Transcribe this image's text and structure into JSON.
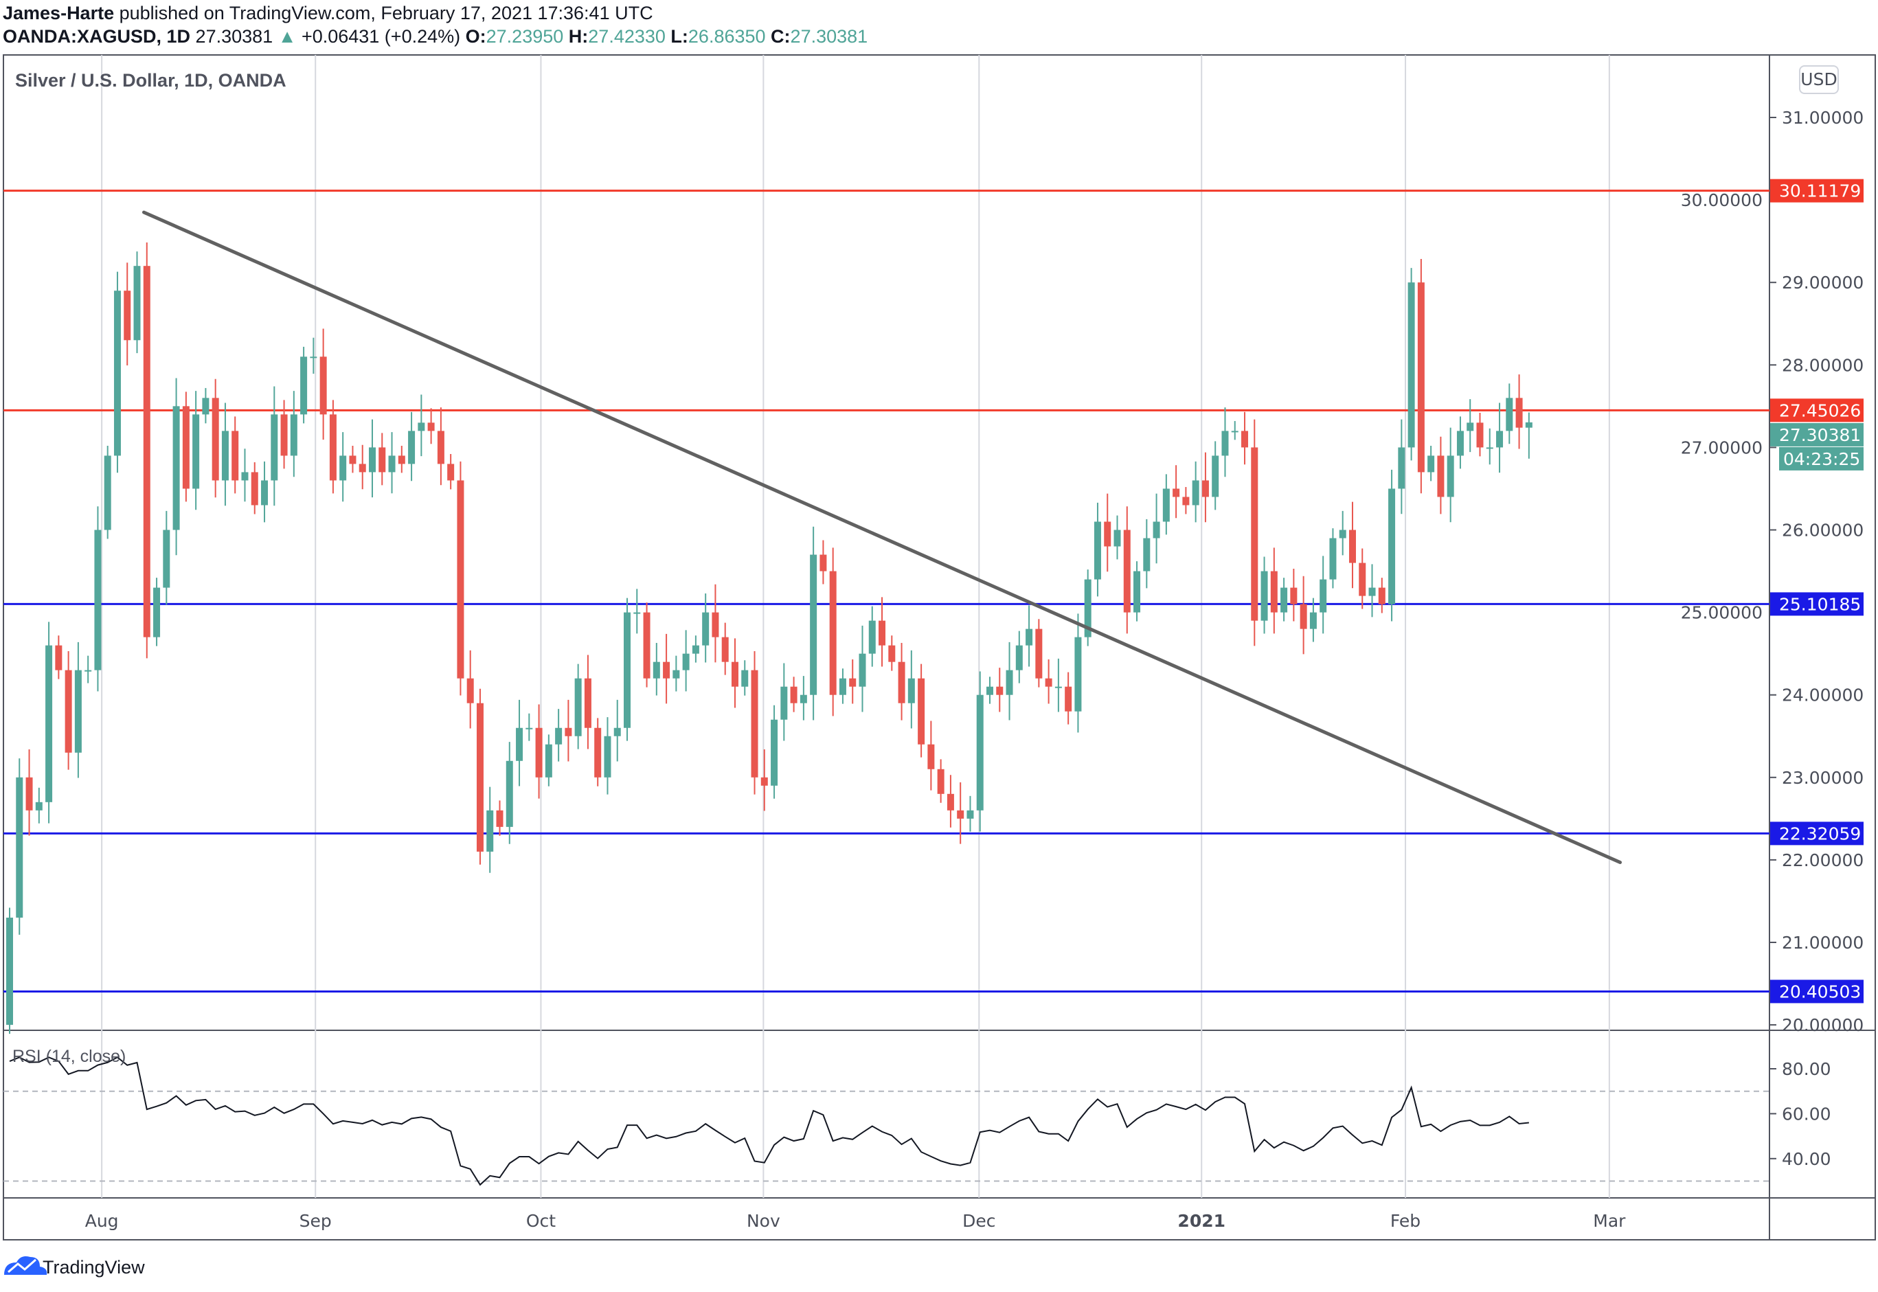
{
  "header": {
    "author": "James-Harte",
    "published": "published on TradingView.com, February 17, 2021 17:36:41 UTC",
    "symbol": "OANDA:XAGUSD, 1D",
    "last": "27.30381",
    "change": "+0.06431 (+0.24%)",
    "o_label": "O:",
    "o": "27.23950",
    "h_label": "H:",
    "h": "27.42330",
    "l_label": "L:",
    "l": "26.86350",
    "c_label": "C:",
    "c": "27.30381"
  },
  "chart_title": "Silver / U.S. Dollar, 1D, OANDA",
  "currency_button": "USD",
  "rsi_title": "RSI (14, close)",
  "countdown": "04:23:25",
  "footer_brand": "TradingView",
  "colors": {
    "up": "#53a69a",
    "down": "#e8574f",
    "resistance": "#f23a2a",
    "support": "#1a1ae6",
    "trendline": "#616161"
  },
  "chart_data": {
    "type": "candlestick",
    "ylim": [
      19.9,
      31.8
    ],
    "y_ticks": [
      "31.00000",
      "30.00000",
      "29.00000",
      "28.00000",
      "27.00000",
      "26.00000",
      "25.00000",
      "24.00000",
      "23.00000",
      "22.00000",
      "21.00000",
      "20.00000"
    ],
    "x_ticks": [
      {
        "label": "Aug",
        "bar": 9.4
      },
      {
        "label": "Sep",
        "bar": 31.2
      },
      {
        "label": "Oct",
        "bar": 54.2
      },
      {
        "label": "Nov",
        "bar": 76.9
      },
      {
        "label": "Dec",
        "bar": 98.9
      },
      {
        "label": "2021",
        "bar": 121.6
      },
      {
        "label": "Feb",
        "bar": 142.4
      },
      {
        "label": "Mar",
        "bar": 163.2
      }
    ],
    "first_open": 20.0,
    "close": [
      21.3,
      23.0,
      22.6,
      22.7,
      24.6,
      24.3,
      23.3,
      24.3,
      24.3,
      26.0,
      26.9,
      28.9,
      28.3,
      29.2,
      24.7,
      25.3,
      26.0,
      27.5,
      26.5,
      27.4,
      27.6,
      26.6,
      27.2,
      26.6,
      26.7,
      26.3,
      26.6,
      27.4,
      26.9,
      27.4,
      28.1,
      28.1,
      27.4,
      26.6,
      26.9,
      26.8,
      26.7,
      27.0,
      26.7,
      26.9,
      26.8,
      27.2,
      27.3,
      27.2,
      26.8,
      26.6,
      24.2,
      23.9,
      22.1,
      22.6,
      22.4,
      23.2,
      23.6,
      23.6,
      23.0,
      23.4,
      23.6,
      23.5,
      24.2,
      23.6,
      23.0,
      23.5,
      23.6,
      25.0,
      25.0,
      24.2,
      24.4,
      24.2,
      24.3,
      24.5,
      24.6,
      25.0,
      24.7,
      24.4,
      24.1,
      24.3,
      23.0,
      22.9,
      23.7,
      24.1,
      23.9,
      24.0,
      25.7,
      25.5,
      24.0,
      24.2,
      24.1,
      24.5,
      24.9,
      24.6,
      24.4,
      23.9,
      24.2,
      23.4,
      23.1,
      22.8,
      22.6,
      22.5,
      22.6,
      24.0,
      24.1,
      24.0,
      24.3,
      24.6,
      24.8,
      24.2,
      24.1,
      24.1,
      23.8,
      24.7,
      25.4,
      26.1,
      25.8,
      26.0,
      25.0,
      25.5,
      25.9,
      26.1,
      26.5,
      26.4,
      26.3,
      26.6,
      26.4,
      26.9,
      27.2,
      27.2,
      27.0,
      24.9,
      25.5,
      25.0,
      25.3,
      25.1,
      24.8,
      25.0,
      25.4,
      25.9,
      26.0,
      25.6,
      25.2,
      25.3,
      25.1,
      26.5,
      27.0,
      29.0,
      26.7,
      26.9,
      26.4,
      26.9,
      27.2,
      27.3,
      27.0,
      27.0,
      27.2,
      27.6,
      27.2395,
      27.30381
    ],
    "last_bar": {
      "open": 27.2395,
      "high": 27.4233,
      "low": 26.8635,
      "close": 27.30381
    },
    "levels": [
      {
        "label": "30.11179",
        "value": 30.11179,
        "kind": "resistance"
      },
      {
        "label": "27.45026",
        "value": 27.45026,
        "kind": "resistance"
      },
      {
        "label": "25.10185",
        "value": 25.10185,
        "kind": "support"
      },
      {
        "label": "22.32059",
        "value": 22.32059,
        "kind": "support"
      },
      {
        "label": "20.40503",
        "value": 20.40503,
        "kind": "support"
      }
    ],
    "last_price_label": "27.30381",
    "trendline": {
      "start_bar": 13.7,
      "start_price": 29.85,
      "end_bar": 164.3,
      "end_price": 21.97
    },
    "rsi": {
      "period": 14,
      "y_ticks": [
        "80.00",
        "60.00",
        "40.00"
      ],
      "bands": [
        70,
        30
      ],
      "ylim": [
        25,
        88
      ]
    }
  }
}
